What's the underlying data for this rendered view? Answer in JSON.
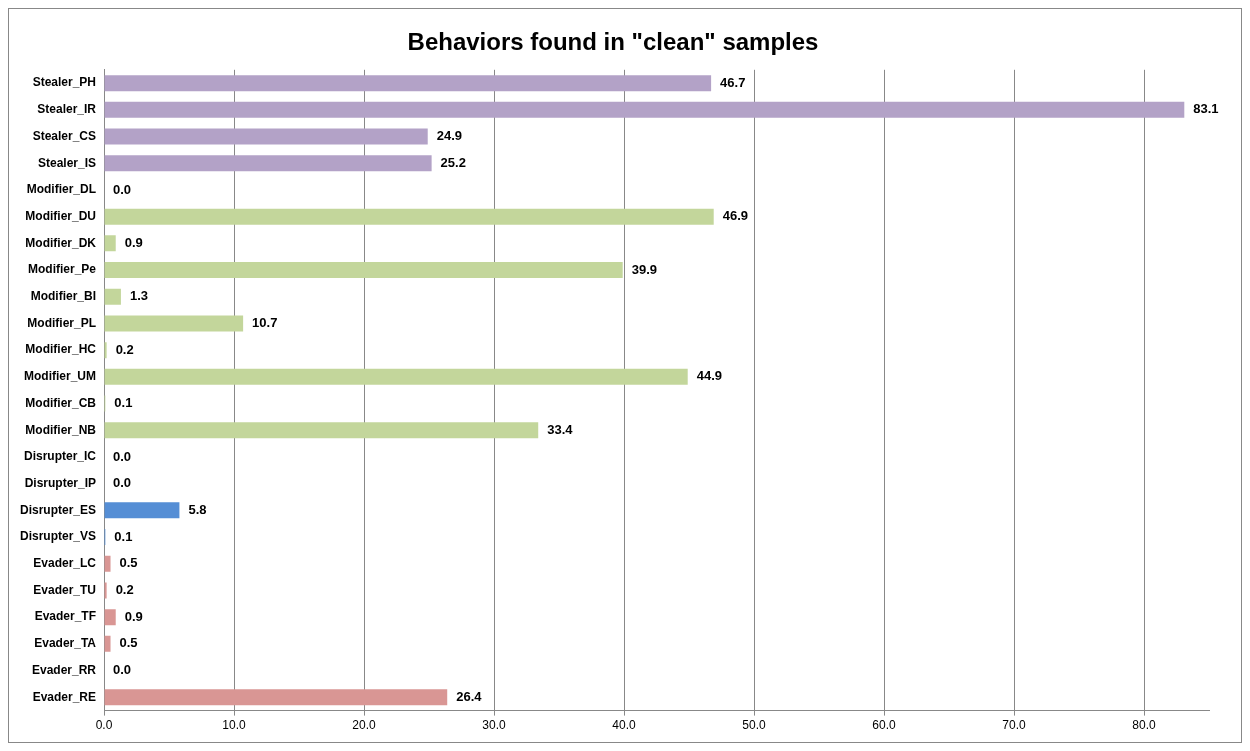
{
  "chart_data": {
    "type": "bar",
    "orientation": "horizontal",
    "title": "Behaviors found in \"clean\" samples",
    "categories": [
      "Stealer_PH",
      "Stealer_IR",
      "Stealer_CS",
      "Stealer_IS",
      "Modifier_DL",
      "Modifier_DU",
      "Modifier_DK",
      "Modifier_Pe",
      "Modifier_BI",
      "Modifier_PL",
      "Modifier_HC",
      "Modifier_UM",
      "Modifier_CB",
      "Modifier_NB",
      "Disrupter_IC",
      "Disrupter_IP",
      "Disrupter_ES",
      "Disrupter_VS",
      "Evader_LC",
      "Evader_TU",
      "Evader_TF",
      "Evader_TA",
      "Evader_RR",
      "Evader_RE"
    ],
    "values": [
      46.7,
      83.1,
      24.9,
      25.2,
      0.0,
      46.9,
      0.9,
      39.9,
      1.3,
      10.7,
      0.2,
      44.9,
      0.1,
      33.4,
      0.0,
      0.0,
      5.8,
      0.1,
      0.5,
      0.2,
      0.9,
      0.5,
      0.0,
      26.4
    ],
    "value_labels": [
      "46.7",
      "83.1",
      "24.9",
      "25.2",
      "0.0",
      "46.9",
      "0.9",
      "39.9",
      "1.3",
      "10.7",
      "0.2",
      "44.9",
      "0.1",
      "33.4",
      "0.0",
      "0.0",
      "5.8",
      "0.1",
      "0.5",
      "0.2",
      "0.9",
      "0.5",
      "0.0",
      "26.4"
    ],
    "colors": [
      "#b3a2c7",
      "#b3a2c7",
      "#b3a2c7",
      "#b3a2c7",
      "#c3d69b",
      "#c3d69b",
      "#c3d69b",
      "#c3d69b",
      "#c3d69b",
      "#c3d69b",
      "#c3d69b",
      "#c3d69b",
      "#c3d69b",
      "#c3d69b",
      "#558ed5",
      "#558ed5",
      "#558ed5",
      "#558ed5",
      "#d99694",
      "#d99694",
      "#d99694",
      "#d99694",
      "#d99694",
      "#d99694"
    ],
    "xlim": [
      0,
      85
    ],
    "xticks": [
      {
        "value": 0,
        "label": "0.0"
      },
      {
        "value": 10,
        "label": "10.0"
      },
      {
        "value": 20,
        "label": "20.0"
      },
      {
        "value": 30,
        "label": "30.0"
      },
      {
        "value": 40,
        "label": "40.0"
      },
      {
        "value": 50,
        "label": "50.0"
      },
      {
        "value": 60,
        "label": "60.0"
      },
      {
        "value": 70,
        "label": "70.0"
      },
      {
        "value": 80,
        "label": "80.0"
      }
    ],
    "grid": "x",
    "legend": false
  }
}
